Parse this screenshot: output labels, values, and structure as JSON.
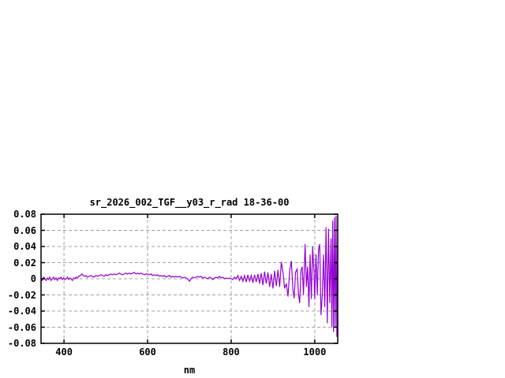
{
  "window": {
    "background": "#ffffff"
  },
  "chart_data": {
    "type": "line",
    "title": "sr_2026_002_TGF__y03_r_rad 18-36-00",
    "xlabel": "nm",
    "ylabel": "",
    "xlim": [
      345,
      1055
    ],
    "ylim": [
      -0.08,
      0.08
    ],
    "grid": true,
    "legend_position": "none",
    "line_color": "#9400d3",
    "grid_color": "#a0a0a0",
    "border_color": "#000000",
    "text_color": "#000000",
    "xticks": {
      "values": [
        400,
        600,
        800,
        1000
      ],
      "labels": [
        "400",
        "600",
        "800",
        "1000"
      ]
    },
    "yticks": {
      "values": [
        0.08,
        0.06,
        0.04,
        0.02,
        0,
        -0.02,
        -0.04,
        -0.06,
        -0.08
      ],
      "labels": [
        "0.08",
        "0.06",
        "0.04",
        "0.02",
        "0",
        "-0.02",
        "-0.04",
        "-0.06",
        "-0.08"
      ]
    },
    "series": [
      {
        "name": "",
        "points": [
          [
            345,
            0.001
          ],
          [
            348,
            -0.002
          ],
          [
            351,
            0.002
          ],
          [
            354,
            0
          ],
          [
            357,
            -0.002
          ],
          [
            360,
            0.001
          ],
          [
            363,
            -0.001
          ],
          [
            366,
            0.002
          ],
          [
            369,
            -0.002
          ],
          [
            372,
            0
          ],
          [
            375,
            0.002
          ],
          [
            378,
            -0.001
          ],
          [
            381,
            0.001
          ],
          [
            384,
            -0.002
          ],
          [
            387,
            0.001
          ],
          [
            390,
            0
          ],
          [
            393,
            0.002
          ],
          [
            396,
            -0.001
          ],
          [
            399,
            0.001
          ],
          [
            402,
            -0.001
          ],
          [
            405,
            0
          ],
          [
            408,
            0.002
          ],
          [
            411,
            -0.001
          ],
          [
            414,
            0.001
          ],
          [
            417,
            0
          ],
          [
            420,
            -0.002
          ],
          [
            423,
            0.001
          ],
          [
            426,
            0
          ],
          [
            429,
            0.002
          ],
          [
            432,
            0.001
          ],
          [
            435,
            0.003
          ],
          [
            439,
            0.004
          ],
          [
            443,
            0.006
          ],
          [
            446,
            0.004
          ],
          [
            449,
            0.003
          ],
          [
            452,
            0.004
          ],
          [
            456,
            0.002
          ],
          [
            460,
            0.003
          ],
          [
            464,
            0.004
          ],
          [
            468,
            0.003
          ],
          [
            472,
            0.002
          ],
          [
            476,
            0.004
          ],
          [
            480,
            0.003
          ],
          [
            484,
            0.004
          ],
          [
            488,
            0.005
          ],
          [
            492,
            0.004
          ],
          [
            496,
            0.003
          ],
          [
            500,
            0.005
          ],
          [
            504,
            0.004
          ],
          [
            508,
            0.005
          ],
          [
            512,
            0.006
          ],
          [
            516,
            0.005
          ],
          [
            520,
            0.006
          ],
          [
            524,
            0.005
          ],
          [
            528,
            0.006
          ],
          [
            532,
            0.007
          ],
          [
            536,
            0.006
          ],
          [
            540,
            0.005
          ],
          [
            544,
            0.006
          ],
          [
            548,
            0.007
          ],
          [
            552,
            0.006
          ],
          [
            556,
            0.007
          ],
          [
            560,
            0.006
          ],
          [
            564,
            0.007
          ],
          [
            568,
            0.008
          ],
          [
            572,
            0.006
          ],
          [
            576,
            0.007
          ],
          [
            580,
            0.006
          ],
          [
            584,
            0.007
          ],
          [
            588,
            0.006
          ],
          [
            592,
            0.005
          ],
          [
            596,
            0.006
          ],
          [
            600,
            0.006
          ],
          [
            604,
            0.005
          ],
          [
            608,
            0.006
          ],
          [
            612,
            0.004
          ],
          [
            616,
            0.005
          ],
          [
            620,
            0.004
          ],
          [
            624,
            0.005
          ],
          [
            628,
            0.003
          ],
          [
            632,
            0.004
          ],
          [
            636,
            0.003
          ],
          [
            640,
            0.004
          ],
          [
            644,
            0.002
          ],
          [
            648,
            0.003
          ],
          [
            652,
            0.004
          ],
          [
            656,
            0.002
          ],
          [
            660,
            0.003
          ],
          [
            664,
            0.002
          ],
          [
            668,
            0.003
          ],
          [
            672,
            0.002
          ],
          [
            676,
            0.003
          ],
          [
            680,
            0.002
          ],
          [
            684,
            0.001
          ],
          [
            688,
            0.002
          ],
          [
            692,
            0.001
          ],
          [
            696,
            0
          ],
          [
            700,
            -0.003
          ],
          [
            704,
            0
          ],
          [
            708,
            0.002
          ],
          [
            712,
            0.001
          ],
          [
            716,
            0.002
          ],
          [
            720,
            0.003
          ],
          [
            724,
            0.002
          ],
          [
            728,
            0.003
          ],
          [
            732,
            0.001
          ],
          [
            736,
            0.002
          ],
          [
            740,
            0.001
          ],
          [
            744,
            0
          ],
          [
            748,
            0.002
          ],
          [
            752,
            0.001
          ],
          [
            756,
            -0.001
          ],
          [
            760,
            0.001
          ],
          [
            764,
            0.002
          ],
          [
            768,
            0.001
          ],
          [
            772,
            0.003
          ],
          [
            776,
            0.001
          ],
          [
            780,
            0.002
          ],
          [
            784,
            0
          ],
          [
            788,
            0.001
          ],
          [
            792,
            0
          ],
          [
            796,
            0.001
          ],
          [
            800,
            0
          ],
          [
            804,
            -0.001
          ],
          [
            808,
            0.002
          ],
          [
            812,
            0
          ],
          [
            816,
            0.004
          ],
          [
            820,
            -0.002
          ],
          [
            824,
            0.003
          ],
          [
            828,
            -0.003
          ],
          [
            832,
            0.004
          ],
          [
            836,
            -0.004
          ],
          [
            840,
            0.005
          ],
          [
            844,
            -0.003
          ],
          [
            848,
            0.004
          ],
          [
            852,
            -0.005
          ],
          [
            856,
            0.005
          ],
          [
            860,
            -0.004
          ],
          [
            864,
            0.006
          ],
          [
            868,
            -0.006
          ],
          [
            872,
            0.007
          ],
          [
            876,
            -0.008
          ],
          [
            880,
            0.009
          ],
          [
            884,
            -0.006
          ],
          [
            888,
            0.008
          ],
          [
            892,
            -0.01
          ],
          [
            896,
            0.006
          ],
          [
            900,
            -0.012
          ],
          [
            904,
            0.01
          ],
          [
            908,
            -0.009
          ],
          [
            912,
            0.011
          ],
          [
            916,
            -0.01
          ],
          [
            920,
            0.021
          ],
          [
            924,
            0.008
          ],
          [
            928,
            -0.012
          ],
          [
            932,
            -0.006
          ],
          [
            936,
            -0.022
          ],
          [
            940,
            0.01
          ],
          [
            944,
            0.022
          ],
          [
            948,
            -0.015
          ],
          [
            951,
            -0.024
          ],
          [
            954,
            0.008
          ],
          [
            958,
            0.012
          ],
          [
            961,
            -0.018
          ],
          [
            964,
            -0.03
          ],
          [
            967,
            0.01
          ],
          [
            970,
            0.015
          ],
          [
            973,
            -0.02
          ],
          [
            977,
            0.043
          ],
          [
            980,
            -0.01
          ],
          [
            983,
            0.015
          ],
          [
            986,
            -0.035
          ],
          [
            989,
            0.03
          ],
          [
            992,
            -0.025
          ],
          [
            995,
            0.04
          ],
          [
            998,
            0.01
          ],
          [
            1000,
            -0.025
          ],
          [
            1003,
            0.03
          ],
          [
            1006,
            -0.02
          ],
          [
            1009,
            0.035
          ],
          [
            1012,
            0.043
          ],
          [
            1015,
            -0.045
          ],
          [
            1018,
            -0.02
          ],
          [
            1021,
            0.03
          ],
          [
            1024,
            -0.035
          ],
          [
            1027,
            0.064
          ],
          [
            1030,
            -0.055
          ],
          [
            1033,
            0.062
          ],
          [
            1036,
            -0.03
          ],
          [
            1039,
            0.05
          ],
          [
            1041,
            -0.06
          ],
          [
            1043,
            0.072
          ],
          [
            1045,
            -0.066
          ],
          [
            1047,
            0.076
          ],
          [
            1049,
            -0.06
          ],
          [
            1051,
            0.078
          ],
          [
            1053,
            -0.072
          ],
          [
            1055,
            0.04
          ]
        ]
      }
    ]
  }
}
